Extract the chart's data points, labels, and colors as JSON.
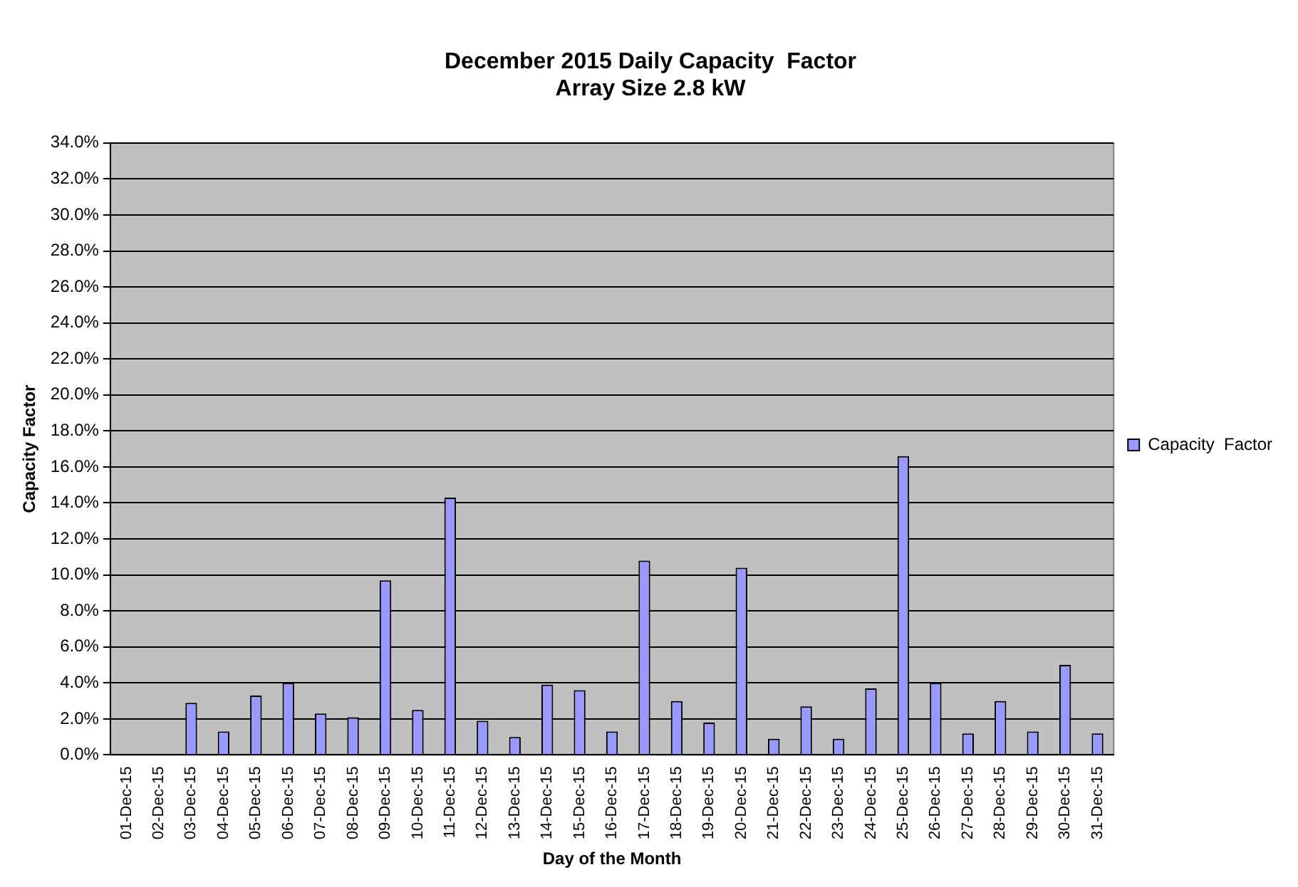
{
  "chart_data": {
    "type": "bar",
    "title": [
      "December 2015 Daily Capacity  Factor",
      "Array Size 2.8 kW"
    ],
    "xlabel": "Day of the Month",
    "ylabel": "Capacity Factor",
    "categories": [
      "01-Dec-15",
      "02-Dec-15",
      "03-Dec-15",
      "04-Dec-15",
      "05-Dec-15",
      "06-Dec-15",
      "07-Dec-15",
      "08-Dec-15",
      "09-Dec-15",
      "10-Dec-15",
      "11-Dec-15",
      "12-Dec-15",
      "13-Dec-15",
      "14-Dec-15",
      "15-Dec-15",
      "16-Dec-15",
      "17-Dec-15",
      "18-Dec-15",
      "19-Dec-15",
      "20-Dec-15",
      "21-Dec-15",
      "22-Dec-15",
      "23-Dec-15",
      "24-Dec-15",
      "25-Dec-15",
      "26-Dec-15",
      "27-Dec-15",
      "28-Dec-15",
      "29-Dec-15",
      "30-Dec-15",
      "31-Dec-15"
    ],
    "series": [
      {
        "name": "Capacity  Factor",
        "color": "#9999ff",
        "values": [
          0,
          0,
          2.9,
          1.3,
          3.3,
          4.0,
          2.3,
          2.1,
          9.7,
          2.5,
          14.3,
          1.9,
          1.0,
          3.9,
          3.6,
          1.3,
          10.8,
          3.0,
          1.8,
          10.4,
          0.9,
          2.7,
          0.9,
          3.7,
          16.6,
          4.0,
          1.2,
          3.0,
          1.3,
          5.0,
          1.2
        ]
      }
    ],
    "ylim": [
      0,
      34
    ],
    "yticks": [
      {
        "value": 0,
        "label": "0.0%"
      },
      {
        "value": 2,
        "label": "2.0%"
      },
      {
        "value": 4,
        "label": "4.0%"
      },
      {
        "value": 6,
        "label": "6.0%"
      },
      {
        "value": 8,
        "label": "8.0%"
      },
      {
        "value": 10,
        "label": "10.0%"
      },
      {
        "value": 12,
        "label": "12.0%"
      },
      {
        "value": 14,
        "label": "14.0%"
      },
      {
        "value": 16,
        "label": "16.0%"
      },
      {
        "value": 18,
        "label": "18.0%"
      },
      {
        "value": 20,
        "label": "20.0%"
      },
      {
        "value": 22,
        "label": "22.0%"
      },
      {
        "value": 24,
        "label": "24.0%"
      },
      {
        "value": 26,
        "label": "26.0%"
      },
      {
        "value": 28,
        "label": "28.0%"
      },
      {
        "value": 30,
        "label": "30.0%"
      },
      {
        "value": 32,
        "label": "32.0%"
      },
      {
        "value": 34,
        "label": "34.0%"
      }
    ],
    "grid": "y",
    "legend": "right"
  }
}
